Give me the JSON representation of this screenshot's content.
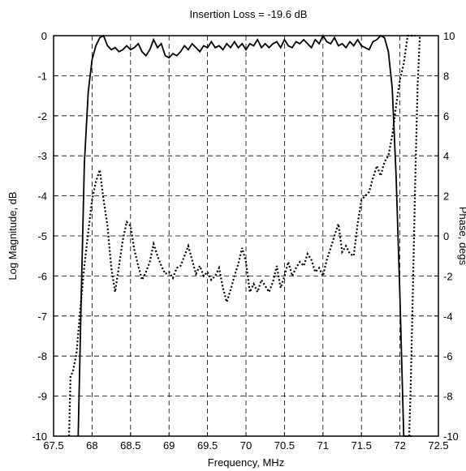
{
  "chart_data": {
    "type": "line",
    "title": "Insertion Loss =  -19.6 dB",
    "xlabel": "Frequency, MHz",
    "ylabel": "Log Magnitude, dB",
    "y2label": "Phase, degs",
    "xlim": [
      67.5,
      72.5
    ],
    "ylim": [
      -10,
      0
    ],
    "y2lim": [
      -10,
      10
    ],
    "grid": true,
    "x_ticks": [
      "67.5",
      "68",
      "68.5",
      "69",
      "69.5",
      "70",
      "70.5",
      "71",
      "71.5",
      "72",
      "72.5"
    ],
    "y_ticks": [
      "0",
      "-1",
      "-2",
      "-3",
      "-4",
      "-5",
      "-6",
      "-7",
      "-8",
      "-9",
      "-10"
    ],
    "y2_ticks": [
      "10",
      "8",
      "6",
      "4",
      "2",
      "0",
      "-2",
      "-4",
      "-6",
      "-8",
      "-10"
    ],
    "series": [
      {
        "axis": "left",
        "style": "solid",
        "x": [
          67.82,
          67.86,
          67.9,
          67.95,
          68.0,
          68.05,
          68.1,
          68.15,
          68.2,
          68.25,
          68.3,
          68.35,
          68.4,
          68.45,
          68.5,
          68.55,
          68.6,
          68.65,
          68.7,
          68.75,
          68.8,
          68.85,
          68.9,
          68.95,
          69.0,
          69.05,
          69.1,
          69.15,
          69.2,
          69.25,
          69.3,
          69.35,
          69.4,
          69.45,
          69.5,
          69.55,
          69.6,
          69.65,
          69.7,
          69.75,
          69.8,
          69.85,
          69.9,
          69.95,
          70.0,
          70.05,
          70.1,
          70.15,
          70.2,
          70.25,
          70.3,
          70.35,
          70.4,
          70.45,
          70.5,
          70.55,
          70.6,
          70.65,
          70.7,
          70.75,
          70.8,
          70.85,
          70.9,
          70.95,
          71.0,
          71.05,
          71.1,
          71.15,
          71.2,
          71.25,
          71.3,
          71.35,
          71.4,
          71.45,
          71.5,
          71.55,
          71.6,
          71.65,
          71.7,
          71.75,
          71.8,
          71.85,
          71.9,
          71.95,
          72.0,
          72.05,
          72.1,
          72.15
        ],
        "y": [
          -10,
          -6.5,
          -3.2,
          -1.4,
          -0.6,
          -0.25,
          -0.05,
          0.0,
          -0.25,
          -0.35,
          -0.3,
          -0.4,
          -0.35,
          -0.25,
          -0.35,
          -0.3,
          -0.2,
          -0.4,
          -0.5,
          -0.35,
          -0.1,
          -0.3,
          -0.2,
          -0.5,
          -0.55,
          -0.45,
          -0.5,
          -0.4,
          -0.25,
          -0.35,
          -0.2,
          -0.3,
          -0.4,
          -0.25,
          -0.3,
          -0.15,
          -0.3,
          -0.25,
          -0.35,
          -0.2,
          -0.3,
          -0.15,
          -0.3,
          -0.2,
          -0.35,
          -0.2,
          -0.25,
          -0.1,
          -0.3,
          -0.2,
          -0.3,
          -0.2,
          -0.15,
          -0.3,
          -0.1,
          -0.25,
          -0.3,
          -0.15,
          -0.2,
          -0.1,
          -0.2,
          -0.3,
          -0.1,
          -0.2,
          0.0,
          -0.15,
          -0.2,
          -0.05,
          -0.25,
          -0.2,
          -0.3,
          -0.15,
          -0.25,
          -0.1,
          -0.25,
          -0.3,
          -0.35,
          -0.15,
          -0.1,
          0.0,
          -0.05,
          -0.4,
          -1.3,
          -3.5,
          -6.5,
          -10,
          -10,
          -10
        ]
      },
      {
        "axis": "right",
        "style": "dotted",
        "x": [
          67.7,
          67.72,
          67.75,
          67.8,
          67.85,
          67.9,
          67.95,
          68.0,
          68.05,
          68.1,
          68.15,
          68.2,
          68.25,
          68.3,
          68.35,
          68.4,
          68.45,
          68.5,
          68.55,
          68.6,
          68.65,
          68.7,
          68.75,
          68.8,
          68.85,
          68.9,
          68.95,
          69.0,
          69.05,
          69.1,
          69.15,
          69.2,
          69.25,
          69.3,
          69.35,
          69.4,
          69.45,
          69.5,
          69.55,
          69.6,
          69.65,
          69.7,
          69.75,
          69.8,
          69.85,
          69.9,
          69.95,
          70.0,
          70.05,
          70.1,
          70.15,
          70.2,
          70.25,
          70.3,
          70.35,
          70.4,
          70.45,
          70.5,
          70.55,
          70.6,
          70.65,
          70.7,
          70.75,
          70.8,
          70.85,
          70.9,
          70.95,
          71.0,
          71.05,
          71.1,
          71.15,
          71.2,
          71.25,
          71.3,
          71.35,
          71.4,
          71.45,
          71.5,
          71.55,
          71.6,
          71.65,
          71.7,
          71.75,
          71.8,
          71.85,
          71.9,
          71.95,
          72.0,
          72.05,
          72.1,
          72.15,
          72.2
        ],
        "y": [
          -10,
          -7,
          -6.8,
          -5.8,
          -3.5,
          -1.5,
          0.2,
          1.8,
          2.7,
          3.3,
          1.8,
          0.5,
          -1.6,
          -2.8,
          -1.5,
          -0.2,
          0.7,
          0.5,
          -0.7,
          -1.5,
          -2.2,
          -1.8,
          -1.3,
          -0.4,
          -1.0,
          -1.5,
          -1.9,
          -1.8,
          -2.1,
          -1.6,
          -1.5,
          -1.0,
          -0.5,
          -1.2,
          -1.9,
          -1.5,
          -2.0,
          -1.8,
          -2.2,
          -2.0,
          -1.6,
          -2.6,
          -3.3,
          -2.7,
          -2.0,
          -1.4,
          -0.6,
          -1.3,
          -2.8,
          -2.4,
          -2.8,
          -2.2,
          -2.5,
          -2.8,
          -2.3,
          -1.5,
          -2.6,
          -2.0,
          -1.3,
          -2.0,
          -1.6,
          -1.3,
          -1.5,
          -0.9,
          -1.2,
          -1.8,
          -1.6,
          -2.0,
          -1.2,
          -0.6,
          0.0,
          0.6,
          -0.8,
          -0.5,
          -0.9,
          -1.0,
          0.6,
          1.8,
          2.0,
          2.2,
          2.9,
          3.5,
          3.0,
          3.7,
          4.0,
          5.0,
          6.5,
          7.8,
          8.6,
          10.0,
          10.0,
          10.0
        ]
      },
      {
        "axis": "right",
        "style": "dotted",
        "x": [
          72.12,
          72.14,
          72.17,
          72.2,
          72.23,
          72.26
        ],
        "y": [
          -10,
          -7.5,
          -2.5,
          3.0,
          7.5,
          10.0
        ]
      }
    ]
  }
}
